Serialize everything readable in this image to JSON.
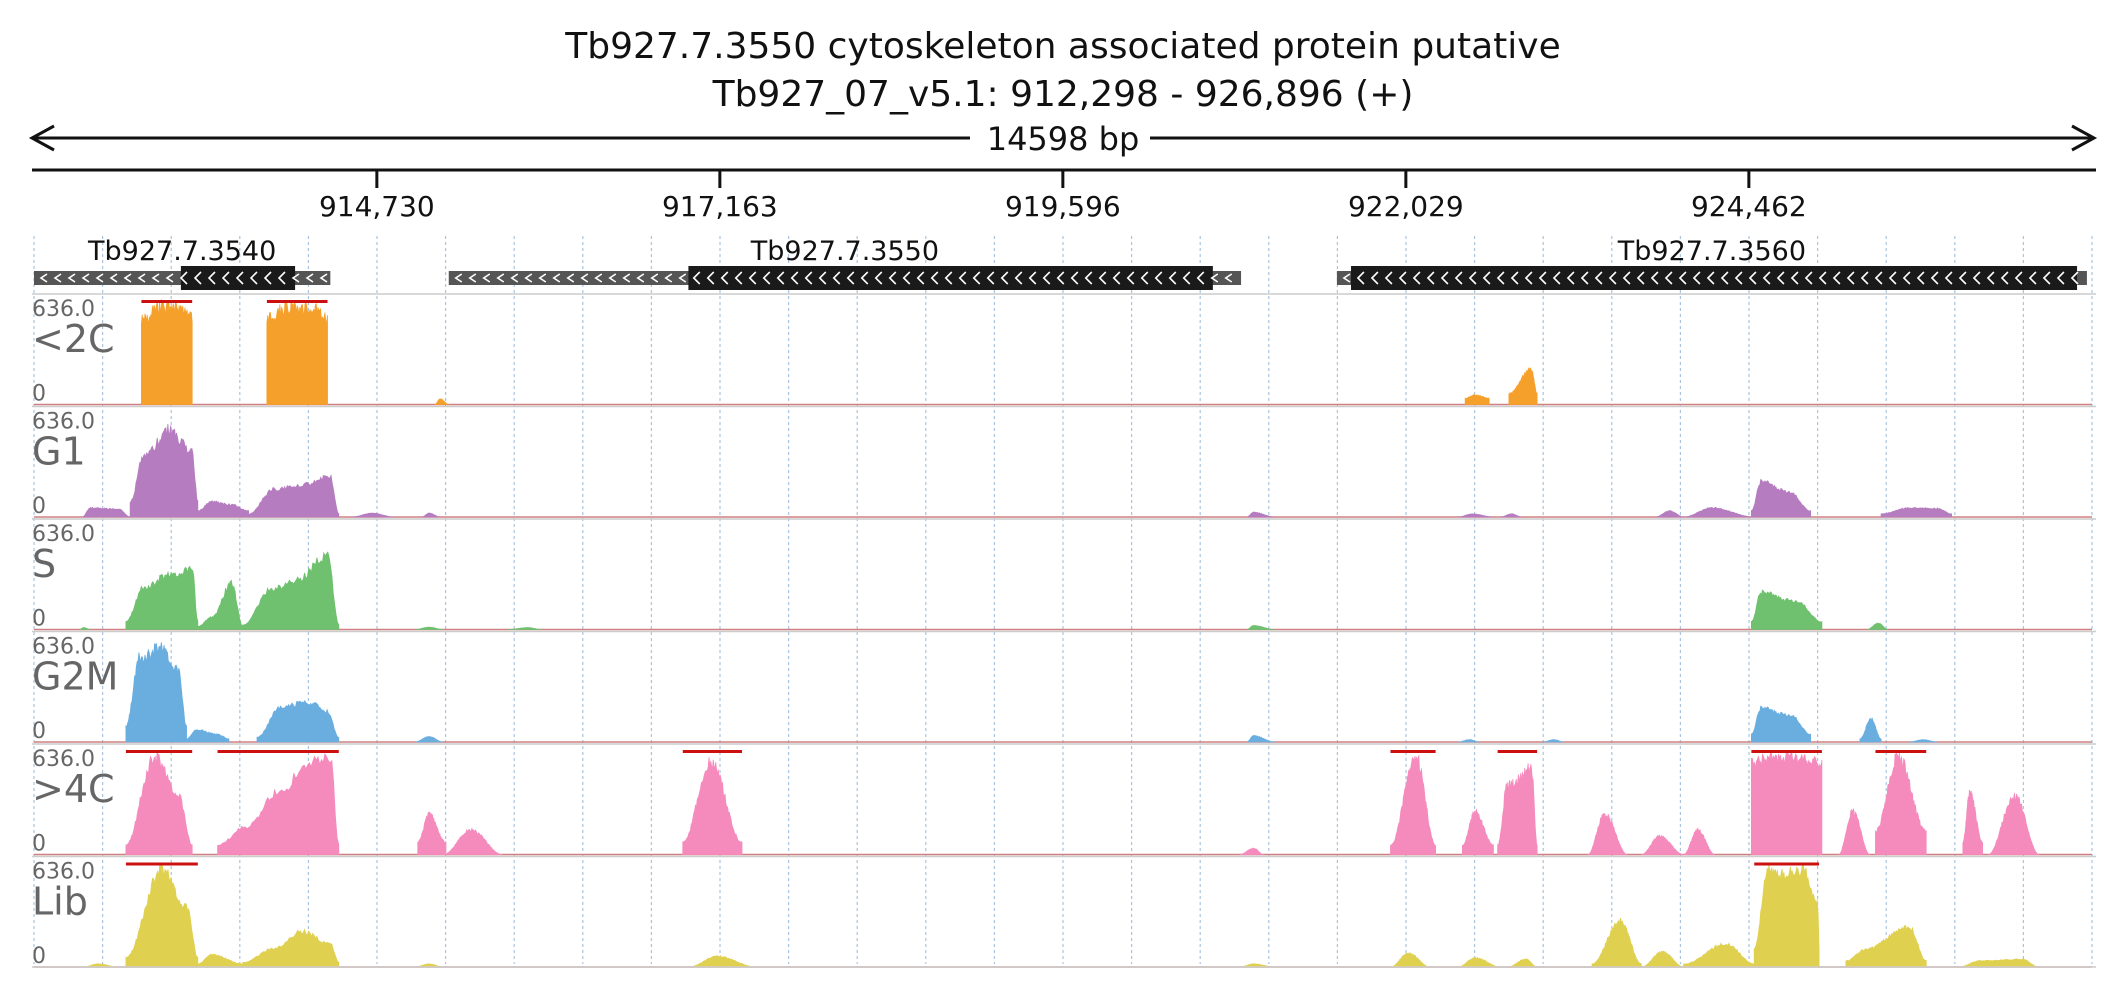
{
  "title": {
    "line1": "Tb927.7.3550  cytoskeleton associated protein  putative",
    "line2": "Tb927_07_v5.1: 912,298 - 926,896 (+)"
  },
  "span_label": "14598 bp",
  "colors": {
    "text": "#111111",
    "track_label": "#666666",
    "grid": "#a8c4e0",
    "baseline": "#d08080",
    "gene_utr": "#555555",
    "gene_cds": "#1a1a1a",
    "clip": "#cc1010"
  },
  "chart_data": {
    "type": "area",
    "region": {
      "chrom": "Tb927_07_v5.1",
      "start": 912298,
      "end": 926896,
      "strand": "+"
    },
    "x_ticks": [
      "914,730",
      "917,163",
      "919,596",
      "922,029",
      "924,462"
    ],
    "x_tick_values": [
      914730,
      917163,
      919596,
      922029,
      924462
    ],
    "genes": [
      {
        "name": "Tb927.7.3540",
        "strand": "-",
        "start": 912298,
        "end": 914400,
        "cds_start": 913340,
        "cds_end": 914150
      },
      {
        "name": "Tb927.7.3550",
        "strand": "-",
        "start": 915240,
        "end": 920860,
        "cds_start": 916940,
        "cds_end": 920660
      },
      {
        "name": "Tb927.7.3560",
        "strand": "-",
        "start": 921540,
        "end": 926860,
        "cds_start": 921640,
        "cds_end": 926790
      }
    ],
    "ylim": [
      0,
      636.0
    ],
    "y_max_label": "636.0",
    "y_min_label": "0",
    "tracks": [
      {
        "name": "<2C",
        "color": "#f5a02a",
        "segments": [
          {
            "s": 913060,
            "e": 913420,
            "peaks": [
              [
                913200,
                636
              ],
              [
                913330,
                620
              ]
            ],
            "floor": 560,
            "clip": true
          },
          {
            "s": 913950,
            "e": 914380,
            "peaks": [
              [
                914100,
                636
              ],
              [
                914280,
                620
              ]
            ],
            "floor": 560,
            "clip": true
          },
          {
            "s": 915140,
            "e": 915240,
            "peaks": [
              [
                915180,
                35
              ]
            ],
            "floor": 0
          },
          {
            "s": 922450,
            "e": 922620,
            "peaks": [
              [
                922520,
                60
              ]
            ],
            "floor": 40
          },
          {
            "s": 922760,
            "e": 922960,
            "peaks": [
              [
                922920,
                230
              ]
            ],
            "floor": 70
          }
        ]
      },
      {
        "name": "G1",
        "color": "#b57cbf",
        "segments": [
          {
            "s": 912640,
            "e": 912980,
            "peaks": [
              [
                912700,
                60
              ],
              [
                912900,
                50
              ]
            ],
            "floor": 0
          },
          {
            "s": 912980,
            "e": 913460,
            "peaks": [
              [
                913080,
                400
              ],
              [
                913260,
                570
              ],
              [
                913420,
                420
              ]
            ],
            "floor": 100
          },
          {
            "s": 913460,
            "e": 913820,
            "peaks": [
              [
                913560,
                100
              ],
              [
                913700,
                80
              ]
            ],
            "floor": 40
          },
          {
            "s": 913820,
            "e": 914460,
            "peaks": [
              [
                914000,
                180
              ],
              [
                914150,
                200
              ],
              [
                914400,
                260
              ]
            ],
            "floor": 20
          },
          {
            "s": 914550,
            "e": 914850,
            "peaks": [
              [
                914700,
                25
              ]
            ],
            "floor": 0
          },
          {
            "s": 915050,
            "e": 915180,
            "peaks": [
              [
                915100,
                25
              ]
            ],
            "floor": 0
          },
          {
            "s": 920900,
            "e": 921100,
            "peaks": [
              [
                920950,
                30
              ]
            ],
            "floor": 0
          },
          {
            "s": 922400,
            "e": 922650,
            "peaks": [
              [
                922500,
                20
              ]
            ],
            "floor": 0
          },
          {
            "s": 922700,
            "e": 922850,
            "peaks": [
              [
                922780,
                20
              ]
            ],
            "floor": 0
          },
          {
            "s": 923800,
            "e": 924000,
            "peaks": [
              [
                923900,
                40
              ]
            ],
            "floor": 0
          },
          {
            "s": 924000,
            "e": 924500,
            "peaks": [
              [
                924200,
                60
              ]
            ],
            "floor": 0
          },
          {
            "s": 924480,
            "e": 924900,
            "peaks": [
              [
                924550,
                230
              ],
              [
                924750,
                160
              ]
            ],
            "floor": 40
          },
          {
            "s": 925400,
            "e": 925900,
            "peaks": [
              [
                925600,
                60
              ],
              [
                925800,
                55
              ]
            ],
            "floor": 20
          }
        ]
      },
      {
        "name": "S",
        "color": "#6fc06f",
        "segments": [
          {
            "s": 912620,
            "e": 912700,
            "peaks": [
              [
                912650,
                12
              ]
            ],
            "floor": 0
          },
          {
            "s": 912950,
            "e": 913460,
            "peaks": [
              [
                913080,
                280
              ],
              [
                913250,
                350
              ],
              [
                913420,
                400
              ]
            ],
            "floor": 50
          },
          {
            "s": 913460,
            "e": 913780,
            "peaks": [
              [
                913560,
                80
              ],
              [
                913700,
                300
              ]
            ],
            "floor": 20
          },
          {
            "s": 913780,
            "e": 914460,
            "peaks": [
              [
                913980,
                260
              ],
              [
                914160,
                320
              ],
              [
                914380,
                480
              ]
            ],
            "floor": 30
          },
          {
            "s": 915000,
            "e": 915200,
            "peaks": [
              [
                915100,
                15
              ]
            ],
            "floor": 0
          },
          {
            "s": 915660,
            "e": 915900,
            "peaks": [
              [
                915800,
                12
              ]
            ],
            "floor": 0
          },
          {
            "s": 920900,
            "e": 921100,
            "peaks": [
              [
                920950,
                25
              ]
            ],
            "floor": 0
          },
          {
            "s": 924480,
            "e": 924980,
            "peaks": [
              [
                924550,
                240
              ],
              [
                924800,
                180
              ]
            ],
            "floor": 50
          },
          {
            "s": 925300,
            "e": 925450,
            "peaks": [
              [
                925380,
                40
              ]
            ],
            "floor": 0
          }
        ]
      },
      {
        "name": "G2M",
        "color": "#6aaee0",
        "segments": [
          {
            "s": 912950,
            "e": 913380,
            "peaks": [
              [
                913050,
                560
              ],
              [
                913200,
                610
              ],
              [
                913320,
                480
              ]
            ],
            "floor": 100
          },
          {
            "s": 913380,
            "e": 913680,
            "peaks": [
              [
                913450,
                80
              ],
              [
                913600,
                50
              ]
            ],
            "floor": 20
          },
          {
            "s": 913880,
            "e": 914460,
            "peaks": [
              [
                914050,
                230
              ],
              [
                914250,
                260
              ],
              [
                914380,
                200
              ]
            ],
            "floor": 30
          },
          {
            "s": 915000,
            "e": 915200,
            "peaks": [
              [
                915100,
                35
              ]
            ],
            "floor": 0
          },
          {
            "s": 920900,
            "e": 921100,
            "peaks": [
              [
                920950,
                40
              ]
            ],
            "floor": 0
          },
          {
            "s": 922400,
            "e": 922550,
            "peaks": [
              [
                922480,
                15
              ]
            ],
            "floor": 0
          },
          {
            "s": 923000,
            "e": 923150,
            "peaks": [
              [
                923080,
                15
              ]
            ],
            "floor": 0
          },
          {
            "s": 924480,
            "e": 924900,
            "peaks": [
              [
                924550,
                220
              ],
              [
                924760,
                170
              ]
            ],
            "floor": 50
          },
          {
            "s": 925250,
            "e": 925400,
            "peaks": [
              [
                925330,
                150
              ]
            ],
            "floor": 20
          },
          {
            "s": 925600,
            "e": 925800,
            "peaks": [
              [
                925700,
                15
              ]
            ],
            "floor": 0
          }
        ]
      },
      {
        "name": ">4C",
        "color": "#f58bbd",
        "segments": [
          {
            "s": 912950,
            "e": 913420,
            "peaks": [
              [
                913150,
                636
              ],
              [
                913320,
                400
              ]
            ],
            "floor": 60,
            "clip": true
          },
          {
            "s": 913600,
            "e": 914460,
            "peaks": [
              [
                913800,
                180
              ],
              [
                914050,
                420
              ],
              [
                914250,
                600
              ],
              [
                914400,
                636
              ]
            ],
            "floor": 60,
            "clip": true
          },
          {
            "s": 915020,
            "e": 915220,
            "peaks": [
              [
                915100,
                260
              ]
            ],
            "floor": 80
          },
          {
            "s": 915200,
            "e": 915620,
            "peaks": [
              [
                915400,
                160
              ]
            ],
            "floor": 0
          },
          {
            "s": 916900,
            "e": 917320,
            "peaks": [
              [
                917100,
                600
              ]
            ],
            "floor": 80,
            "clip": true
          },
          {
            "s": 920850,
            "e": 921020,
            "peaks": [
              [
                920950,
                40
              ]
            ],
            "floor": 0
          },
          {
            "s": 921920,
            "e": 922240,
            "peaks": [
              [
                922100,
                636
              ]
            ],
            "floor": 60,
            "clip": true
          },
          {
            "s": 922430,
            "e": 922650,
            "peaks": [
              [
                922520,
                280
              ]
            ],
            "floor": 60
          },
          {
            "s": 922680,
            "e": 922960,
            "peaks": [
              [
                922750,
                450
              ],
              [
                922920,
                560
              ]
            ],
            "floor": 60,
            "clip": true
          },
          {
            "s": 923320,
            "e": 923600,
            "peaks": [
              [
                923440,
                260
              ]
            ],
            "floor": 0
          },
          {
            "s": 923700,
            "e": 924000,
            "peaks": [
              [
                923830,
                120
              ]
            ],
            "floor": 0
          },
          {
            "s": 924000,
            "e": 924220,
            "peaks": [
              [
                924100,
                160
              ]
            ],
            "floor": 0
          },
          {
            "s": 924480,
            "e": 924980,
            "peaks": [
              [
                924700,
                636
              ]
            ],
            "floor": 600,
            "clip": true
          },
          {
            "s": 925100,
            "e": 925320,
            "peaks": [
              [
                925200,
                280
              ]
            ],
            "floor": 0
          },
          {
            "s": 925360,
            "e": 925720,
            "peaks": [
              [
                925520,
                636
              ]
            ],
            "floor": 150,
            "clip": true
          },
          {
            "s": 925980,
            "e": 926120,
            "peaks": [
              [
                926030,
                400
              ]
            ],
            "floor": 80
          },
          {
            "s": 926160,
            "e": 926520,
            "peaks": [
              [
                926350,
                380
              ]
            ],
            "floor": 0
          }
        ]
      },
      {
        "name": "Lib",
        "color": "#e0d050",
        "segments": [
          {
            "s": 912650,
            "e": 912900,
            "peaks": [
              [
                912750,
                20
              ]
            ],
            "floor": 0
          },
          {
            "s": 912950,
            "e": 913460,
            "peaks": [
              [
                913200,
                636
              ],
              [
                913380,
                400
              ]
            ],
            "floor": 60,
            "clip": true
          },
          {
            "s": 913460,
            "e": 913780,
            "peaks": [
              [
                913560,
                80
              ]
            ],
            "floor": 20
          },
          {
            "s": 913780,
            "e": 914460,
            "peaks": [
              [
                914000,
                120
              ],
              [
                914200,
                230
              ],
              [
                914400,
                150
              ]
            ],
            "floor": 30
          },
          {
            "s": 915000,
            "e": 915200,
            "peaks": [
              [
                915100,
                20
              ]
            ],
            "floor": 0
          },
          {
            "s": 916940,
            "e": 917420,
            "peaks": [
              [
                917150,
                70
              ]
            ],
            "floor": 0
          },
          {
            "s": 920850,
            "e": 921100,
            "peaks": [
              [
                920950,
                20
              ]
            ],
            "floor": 0
          },
          {
            "s": 921920,
            "e": 922200,
            "peaks": [
              [
                922050,
                90
              ]
            ],
            "floor": 0
          },
          {
            "s": 922400,
            "e": 922700,
            "peaks": [
              [
                922520,
                60
              ]
            ],
            "floor": 0
          },
          {
            "s": 922750,
            "e": 922960,
            "peaks": [
              [
                922880,
                50
              ]
            ],
            "floor": 0
          },
          {
            "s": 923350,
            "e": 923700,
            "peaks": [
              [
                923550,
                300
              ]
            ],
            "floor": 20
          },
          {
            "s": 923700,
            "e": 924000,
            "peaks": [
              [
                923850,
                100
              ]
            ],
            "floor": 0
          },
          {
            "s": 924000,
            "e": 924500,
            "peaks": [
              [
                924300,
                150
              ]
            ],
            "floor": 20
          },
          {
            "s": 924500,
            "e": 924960,
            "peaks": [
              [
                924600,
                636
              ],
              [
                924700,
                600
              ],
              [
                924850,
                636
              ],
              [
                924950,
                420
              ]
            ],
            "floor": 120,
            "clip": true
          },
          {
            "s": 925150,
            "e": 925720,
            "peaks": [
              [
                925300,
                120
              ],
              [
                925600,
                260
              ]
            ],
            "floor": 40
          },
          {
            "s": 925950,
            "e": 926520,
            "peaks": [
              [
                926100,
                40
              ],
              [
                926400,
                50
              ]
            ],
            "floor": 0
          }
        ]
      }
    ]
  }
}
